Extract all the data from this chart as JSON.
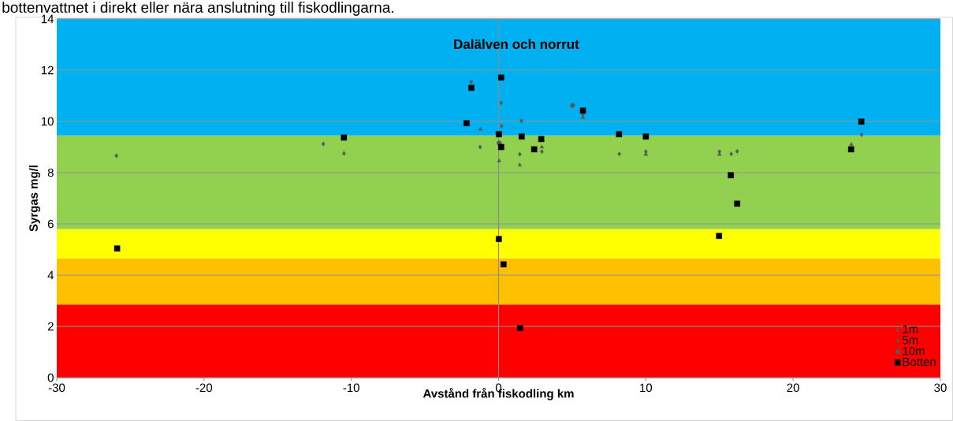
{
  "chart_data": {
    "type": "scatter",
    "title": "bottenvattnet i direkt eller nära anslutning till fiskodlingarna.",
    "xlabel": "Avstånd från fiskodling km",
    "ylabel": "Syrgas mg/l",
    "annotations": [
      "Dalälven och norrut"
    ],
    "xlim": [
      -30,
      30
    ],
    "xticks": [
      -30,
      -20,
      -10,
      0,
      10,
      20,
      30
    ],
    "ylim": [
      0,
      14
    ],
    "yticks": [
      0,
      2,
      4,
      6,
      8,
      10,
      12,
      14
    ],
    "grid": "y",
    "legend": "bottom right",
    "bands": [
      {
        "axis": "y",
        "from": 0,
        "to": 2.85,
        "color": "#ff0000"
      },
      {
        "axis": "y",
        "from": 2.85,
        "to": 4.65,
        "color": "#ffc000"
      },
      {
        "axis": "y",
        "from": 4.65,
        "to": 5.8,
        "color": "#ffff00"
      },
      {
        "axis": "y",
        "from": 5.8,
        "to": 9.45,
        "color": "#92d050"
      },
      {
        "axis": "y",
        "from": 9.45,
        "to": 14,
        "color": "#00b0f0"
      }
    ],
    "series": [
      {
        "name": "1m",
        "color": "#595959",
        "marker": "diamond",
        "x": [
          -25.95,
          -11.9,
          -10.5,
          -1.85,
          0.18,
          1.55,
          0.2,
          -1.25,
          1.44,
          2.94,
          8.2,
          5.73,
          10.0,
          15.0,
          15.8,
          16.2,
          24.65
        ],
        "values": [
          8.66,
          9.12,
          8.75,
          11.54,
          10.72,
          10.02,
          9.82,
          9.0,
          8.72,
          8.82,
          8.73,
          10.25,
          8.82,
          8.82,
          8.73,
          8.83,
          9.48
        ]
      },
      {
        "name": "5m",
        "color": "#595959",
        "marker": "triangle",
        "x": [
          -1.23,
          0.04,
          1.44,
          2.94,
          5.73,
          10.0,
          15.0,
          23.95
        ],
        "values": [
          9.69,
          8.46,
          8.3,
          9.0,
          10.15,
          8.71,
          8.71,
          9.1
        ]
      },
      {
        "name": "10m",
        "color": "#595959",
        "marker": "circle",
        "x": [
          5.02,
          0.04
        ],
        "values": [
          10.62,
          9.15
        ]
      },
      {
        "name": "Botten",
        "color": "#000000",
        "marker": "square",
        "x": [
          -25.9,
          -10.5,
          0.18,
          -1.85,
          -2.17,
          0.02,
          1.57,
          2.9,
          2.42,
          0.18,
          5.73,
          8.18,
          0.02,
          0.34,
          1.46,
          10.0,
          24.63,
          23.94,
          15.77,
          16.2,
          14.97
        ],
        "values": [
          5.04,
          9.37,
          11.71,
          11.31,
          9.93,
          9.5,
          9.41,
          9.31,
          8.91,
          9.0,
          10.42,
          9.5,
          5.41,
          4.42,
          1.93,
          9.41,
          9.99,
          8.91,
          7.9,
          6.79,
          5.53
        ]
      }
    ]
  }
}
